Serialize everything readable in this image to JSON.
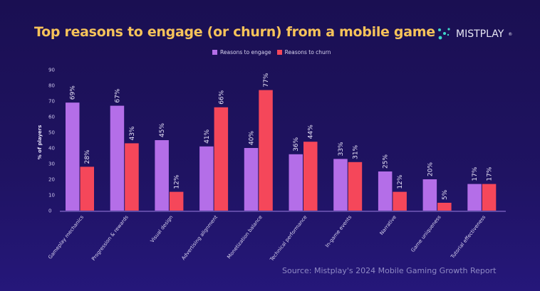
{
  "title": "Top reasons to engage (or churn) from a mobile game",
  "logo": {
    "text": "MISTPLAY",
    "mark": "®"
  },
  "source": "Source:  Mistplay's 2024 Mobile Gaming Growth Report",
  "chart_data": {
    "type": "bar",
    "title": "Top reasons to engage (or churn) from a mobile game",
    "xlabel": "",
    "ylabel": "% of players",
    "ylim": [
      0,
      90
    ],
    "yticks": [
      0,
      10,
      20,
      30,
      40,
      50,
      60,
      70,
      80,
      90
    ],
    "grid": false,
    "legend_position": "top-center",
    "categories": [
      "Gameplay mechanics",
      "Progression & rewards",
      "Visual design",
      "Advertising alignment",
      "Monetization balance",
      "Technical performance",
      "In-game events",
      "Narrative",
      "Game uniqueness",
      "Tutorial effectiveness"
    ],
    "series": [
      {
        "name": "Reasons to engage",
        "color": "#b46ee8",
        "values": [
          69,
          67,
          45,
          41,
          40,
          36,
          33,
          25,
          20,
          17
        ],
        "labels": [
          "69%",
          "67%",
          "45%",
          "41%",
          "40%",
          "36%",
          "33%",
          "25%",
          "20%",
          "17%"
        ]
      },
      {
        "name": "Reasons to churn",
        "color": "#f5475a",
        "values": [
          28,
          43,
          12,
          66,
          77,
          44,
          31,
          12,
          5,
          17
        ],
        "labels": [
          "28%",
          "43%",
          "12%",
          "66%",
          "77%",
          "44%",
          "31%",
          "12%",
          "5%",
          "17%"
        ]
      }
    ]
  }
}
